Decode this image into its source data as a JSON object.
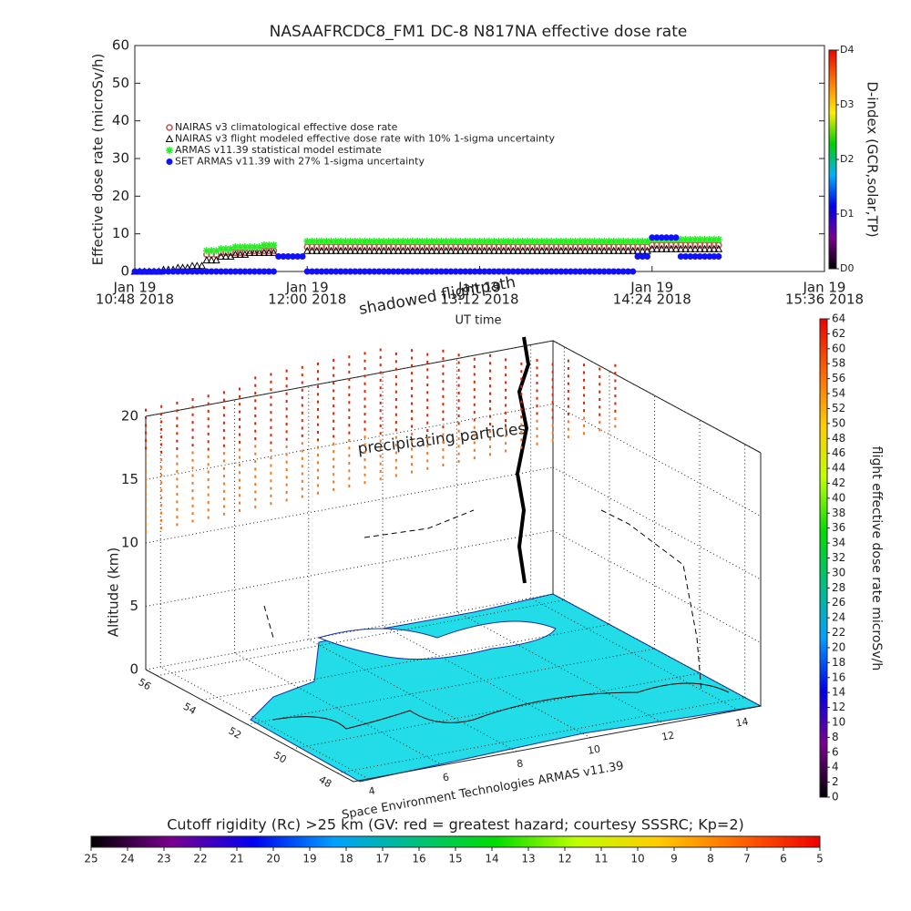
{
  "chart_data": [
    {
      "type": "line",
      "title": "NASAAFRCDC8_FM1 DC-8    N817NA effective dose rate",
      "ylabel": "Effective dose rate (microSv/h)",
      "xlabel": "UT time",
      "x": [
        "2018-01-19 10:48",
        "2018-01-19 10:54",
        "2018-01-19 11:00",
        "2018-01-19 11:06",
        "2018-01-19 11:12",
        "2018-01-19 11:18",
        "2018-01-19 11:24",
        "2018-01-19 11:30",
        "2018-01-19 11:36",
        "2018-01-19 11:42",
        "2018-01-19 11:48",
        "2018-01-19 11:54",
        "2018-01-19 12:00",
        "2018-01-19 12:06",
        "2018-01-19 12:12",
        "2018-01-19 12:18",
        "2018-01-19 12:24",
        "2018-01-19 12:30",
        "2018-01-19 12:36",
        "2018-01-19 12:42",
        "2018-01-19 12:48",
        "2018-01-19 12:54",
        "2018-01-19 13:00",
        "2018-01-19 13:06",
        "2018-01-19 13:12",
        "2018-01-19 13:18",
        "2018-01-19 13:24",
        "2018-01-19 13:30",
        "2018-01-19 13:36",
        "2018-01-19 13:42",
        "2018-01-19 13:48",
        "2018-01-19 13:54",
        "2018-01-19 14:00",
        "2018-01-19 14:06",
        "2018-01-19 14:12",
        "2018-01-19 14:18",
        "2018-01-19 14:24",
        "2018-01-19 14:30",
        "2018-01-19 14:36",
        "2018-01-19 14:42",
        "2018-01-19 14:48"
      ],
      "xlim": [
        "2018-01-19 10:48",
        "2018-01-19 15:36"
      ],
      "xticks": [
        {
          "value": "2018-01-19 10:48",
          "label": [
            "Jan 19",
            "10:48 2018"
          ]
        },
        {
          "value": "2018-01-19 12:00",
          "label": [
            "Jan 19",
            "12:00 2018"
          ]
        },
        {
          "value": "2018-01-19 13:12",
          "label": [
            "Jan 19",
            "13:12 2018"
          ]
        },
        {
          "value": "2018-01-19 14:24",
          "label": [
            "Jan 19",
            "14:24 2018"
          ]
        },
        {
          "value": "2018-01-19 15:36",
          "label": [
            "Jan 19",
            "15:36 2018"
          ]
        }
      ],
      "ylim": [
        0,
        60
      ],
      "yticks": [
        0,
        10,
        20,
        30,
        40,
        50,
        60
      ],
      "series": [
        {
          "name": "NAIRAS v3 climatological effective dose rate",
          "color": "#c05050",
          "marker": "circle",
          "values": [
            null,
            null,
            null,
            null,
            null,
            4.5,
            5,
            5,
            5.5,
            5.5,
            null,
            null,
            6.5,
            6.5,
            6.5,
            6.5,
            6.5,
            6.5,
            6.5,
            6.5,
            6.5,
            6.5,
            6.5,
            6.5,
            6.5,
            6.5,
            6.5,
            6.5,
            6.5,
            6.5,
            6.5,
            6.5,
            6.5,
            6.5,
            6.5,
            6.5,
            7,
            7,
            7,
            7,
            7
          ]
        },
        {
          "name": "NAIRAS v3 flight modeled effective dose rate with 10% 1-sigma uncertainty",
          "color": "#000000",
          "marker": "triangle",
          "values": [
            0,
            0,
            0.5,
            1,
            1.5,
            3,
            4,
            4.5,
            5,
            5,
            null,
            null,
            5.5,
            5.5,
            5.5,
            5.5,
            5.5,
            5.5,
            5.5,
            5.5,
            5.5,
            5.5,
            5.5,
            5.5,
            5.5,
            5.5,
            5.5,
            5.5,
            5.5,
            5.5,
            5.5,
            5.5,
            5.5,
            5.5,
            5.5,
            5.5,
            6,
            6,
            6,
            6,
            6
          ]
        },
        {
          "name": "ARMAS v11.39 statistical model estimate",
          "color": "#22ee22",
          "marker": "star",
          "values": [
            null,
            null,
            null,
            null,
            null,
            5.5,
            6,
            6.5,
            6.5,
            7,
            null,
            null,
            8,
            8,
            8,
            8,
            8,
            8,
            8,
            8,
            8,
            8,
            8,
            8,
            8,
            8,
            8,
            8,
            8,
            8,
            8,
            8,
            8,
            8,
            8,
            8,
            8.5,
            8.5,
            8.5,
            8.5,
            8.5
          ]
        },
        {
          "name": "SET ARMAS v11.39 with 27% 1-sigma uncertainty",
          "color": "#1010ff",
          "marker": "dot",
          "values": [
            0,
            0,
            0,
            0,
            0,
            0,
            0,
            0,
            0,
            0,
            4,
            4,
            0,
            0,
            0,
            0,
            0,
            0,
            0,
            0,
            0,
            0,
            0,
            0,
            0,
            0,
            0,
            0,
            0,
            0,
            0,
            0,
            0,
            0,
            0,
            4,
            9,
            9,
            4,
            4,
            4
          ]
        }
      ],
      "colorbar": {
        "label": "D-index (GCR,solar,TP)",
        "lim": [
          0,
          4
        ],
        "ticks": [
          {
            "value": 0,
            "label": "D0"
          },
          {
            "value": 1,
            "label": "D1"
          },
          {
            "value": 2,
            "label": "D2"
          },
          {
            "value": 3,
            "label": "D3"
          },
          {
            "value": 4,
            "label": "D4"
          }
        ],
        "colors": [
          "#000000",
          "#7a0090",
          "#0000ee",
          "#00b0ff",
          "#00d000",
          "#ffee00",
          "#ff7700",
          "#ee0000"
        ]
      }
    },
    {
      "type": "scatter3d",
      "zlabel": "Altitude (km)",
      "zlim": [
        0,
        20
      ],
      "zticks": [
        0,
        5,
        10,
        15,
        20
      ],
      "xlim": [
        3.6,
        14.6
      ],
      "xticks": [
        4,
        6,
        8,
        10,
        12,
        14
      ],
      "ylim": [
        47.3,
        56.5
      ],
      "yticks": [
        48,
        50,
        52,
        54,
        56
      ],
      "annotations": [
        "shadowed flightpath",
        "precipitating particles"
      ],
      "credit": "Space Environment Technologies ARMAS v11.39",
      "colorbar": {
        "label": "flight effective dose rate microSv/h",
        "lim": [
          0,
          64
        ],
        "ticks": [
          0,
          2,
          4,
          6,
          8,
          10,
          12,
          14,
          16,
          18,
          20,
          22,
          24,
          26,
          28,
          30,
          32,
          34,
          36,
          38,
          40,
          42,
          44,
          46,
          48,
          50,
          52,
          54,
          56,
          58,
          60,
          62,
          64
        ],
        "colors": [
          "#000000",
          "#7a0090",
          "#0000ee",
          "#00a0ff",
          "#00c080",
          "#00dd00",
          "#c0ff00",
          "#ffcc00",
          "#ff6600",
          "#ee0000"
        ]
      },
      "colorbar2": {
        "label": "Cutoff rigidity (Rc) >25 km (GV: red = greatest hazard; courtesy SSSRC; Kp=2)",
        "lim": [
          25,
          5
        ],
        "ticks": [
          25,
          24,
          23,
          22,
          21,
          20,
          19,
          18,
          17,
          16,
          15,
          14,
          13,
          12,
          11,
          10,
          9,
          8,
          7,
          6,
          5
        ],
        "colors": [
          "#000000",
          "#7a0090",
          "#0000ee",
          "#00a0ff",
          "#00c080",
          "#00dd00",
          "#c0ff00",
          "#ffcc00",
          "#ff6600",
          "#ee0000"
        ]
      }
    }
  ]
}
